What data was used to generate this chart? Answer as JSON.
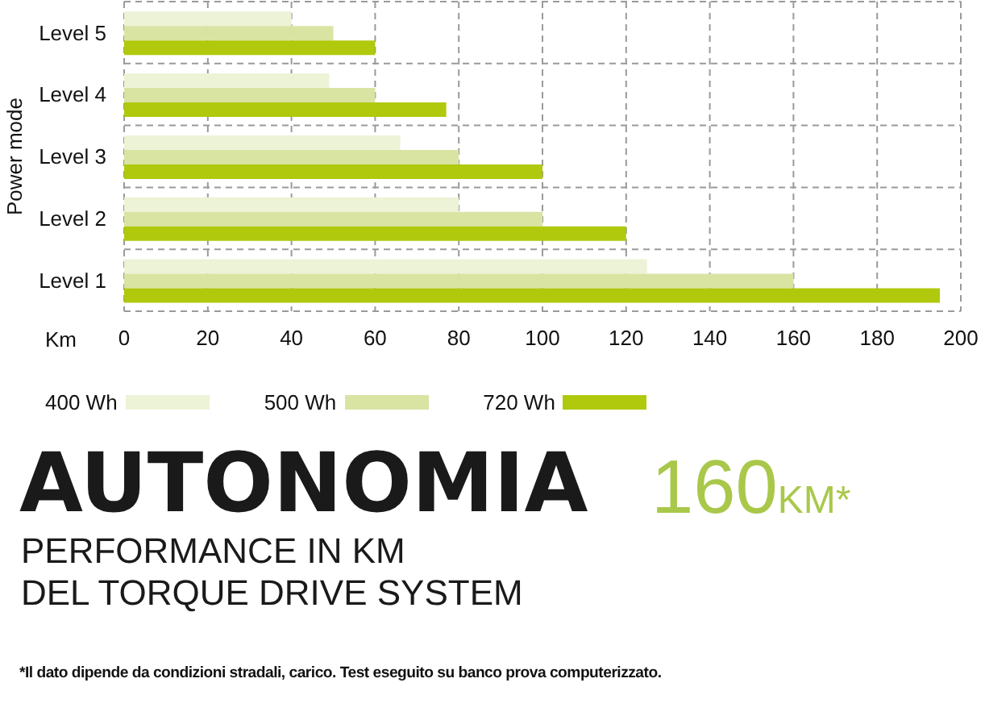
{
  "chart_data": {
    "type": "bar",
    "orientation": "horizontal",
    "title": "AUTONOMIA",
    "subtitle": "PERFORMANCE IN KM\nDEL TORQUE DRIVE SYSTEM",
    "xlabel": "Km",
    "ylabel": "Power mode",
    "annotations": [
      "160KM*",
      "*Il dato dipende da condizioni stradali, carico. Test eseguito su banco prova computerizzato."
    ],
    "categories": [
      "Level 5",
      "Level 4",
      "Level 3",
      "Level 2",
      "Level 1"
    ],
    "series": [
      {
        "name": "400 Wh",
        "color": "#edf3d6",
        "values": [
          40,
          49,
          66,
          80,
          125
        ]
      },
      {
        "name": "500 Wh",
        "color": "#d9e4a3",
        "values": [
          50,
          60,
          80,
          100,
          160
        ]
      },
      {
        "name": "720 Wh",
        "color": "#b0c90d",
        "values": [
          60,
          77,
          100,
          120,
          195
        ]
      }
    ],
    "xlim": [
      0,
      200
    ],
    "xticks": [
      0,
      20,
      40,
      60,
      80,
      100,
      120,
      140,
      160,
      180,
      200
    ],
    "grid": true,
    "legend": "bottom"
  }
}
